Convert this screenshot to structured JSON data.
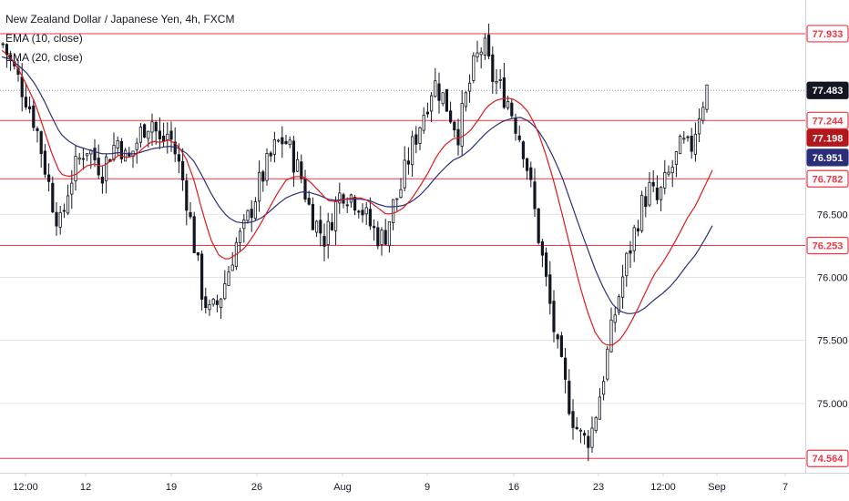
{
  "header": {
    "title": "New Zealand Dollar / Japanese Yen, 4h, FXCM",
    "indicators": [
      "EMA (10, close)",
      "EMA (20, close)"
    ]
  },
  "colors": {
    "up": "#131722",
    "down": "#131722",
    "ema10": "#e0191c",
    "ema20": "#2a2e7a",
    "level_line": "#f23645",
    "dotted": "#9598a1",
    "grid": "#e0e3eb",
    "axis_text": "#131722"
  },
  "chart_data": {
    "type": "candlestick",
    "title": "New Zealand Dollar / Japanese Yen, 4h, FXCM",
    "x_tick_labels": [
      "12:00",
      "12",
      "19",
      "26",
      "Aug",
      "9",
      "16",
      "23",
      "12:00",
      "Sep",
      "7"
    ],
    "y_tick_labels": [
      "76.500",
      "76.000",
      "75.500",
      "75.000"
    ],
    "ylim": [
      74.45,
      78.2
    ],
    "horizontal_levels": [
      77.933,
      77.244,
      76.782,
      76.253,
      74.564
    ],
    "price_badges": [
      {
        "value": "77.933",
        "style": "outline",
        "color": "#f23645"
      },
      {
        "value": "77.483",
        "style": "filled",
        "color": "#131722"
      },
      {
        "value": "77.244",
        "style": "outline",
        "color": "#f23645"
      },
      {
        "value": "77.198",
        "style": "filled",
        "color": "#b2171b"
      },
      {
        "value": "76.951",
        "style": "filled",
        "color": "#2a2e7a"
      },
      {
        "value": "76.782",
        "style": "outline",
        "color": "#f23645"
      },
      {
        "value": "76.253",
        "style": "outline",
        "color": "#f23645"
      },
      {
        "value": "74.564",
        "style": "outline",
        "color": "#f23645"
      }
    ],
    "last_price": 77.483,
    "close_path": [
      77.85,
      77.7,
      77.55,
      77.4,
      77.2,
      76.9,
      76.6,
      76.4,
      76.75,
      76.9,
      77.05,
      76.95,
      76.85,
      77.0,
      77.1,
      76.9,
      77.05,
      77.2,
      77.25,
      77.05,
      77.15,
      76.95,
      76.7,
      76.3,
      75.9,
      75.7,
      75.8,
      76.0,
      76.25,
      76.35,
      76.55,
      76.75,
      76.9,
      77.05,
      77.1,
      76.95,
      76.8,
      76.55,
      76.4,
      76.3,
      76.55,
      76.7,
      76.65,
      76.6,
      76.45,
      76.35,
      76.3,
      76.55,
      76.7,
      76.95,
      77.15,
      77.35,
      77.55,
      77.45,
      77.3,
      77.15,
      77.45,
      77.7,
      77.85,
      77.6,
      77.5,
      77.4,
      77.2,
      77.0,
      76.6,
      76.2,
      75.8,
      75.4,
      75.1,
      74.85,
      74.7,
      74.75,
      75.05,
      75.4,
      75.75,
      76.05,
      76.3,
      76.55,
      76.7,
      76.6,
      76.75,
      76.9,
      77.05,
      77.0,
      77.3,
      77.5
    ],
    "ema10_path": [
      77.8,
      77.75,
      77.65,
      77.52,
      77.38,
      77.18,
      76.98,
      76.82,
      76.8,
      76.82,
      76.88,
      76.9,
      76.88,
      76.92,
      76.97,
      76.95,
      76.97,
      77.03,
      77.08,
      77.07,
      77.09,
      77.05,
      76.95,
      76.77,
      76.52,
      76.3,
      76.17,
      76.14,
      76.18,
      76.23,
      76.32,
      76.43,
      76.55,
      76.67,
      76.77,
      76.8,
      76.8,
      76.75,
      76.68,
      76.61,
      76.6,
      76.62,
      76.63,
      76.63,
      76.6,
      76.55,
      76.5,
      76.51,
      76.55,
      76.62,
      76.72,
      76.83,
      76.96,
      77.05,
      77.1,
      77.11,
      77.16,
      77.25,
      77.35,
      77.4,
      77.42,
      77.42,
      77.38,
      77.31,
      77.18,
      76.99,
      76.77,
      76.51,
      76.24,
      75.97,
      75.74,
      75.56,
      75.47,
      75.46,
      75.51,
      75.61,
      75.74,
      75.88,
      76.02,
      76.11,
      76.22,
      76.34,
      76.47,
      76.57,
      76.71,
      76.85
    ],
    "ema20_path": [
      77.75,
      77.73,
      77.68,
      77.62,
      77.53,
      77.41,
      77.27,
      77.14,
      77.08,
      77.04,
      77.02,
      77.0,
      76.98,
      76.98,
      76.99,
      76.98,
      76.98,
      77.0,
      77.02,
      77.03,
      77.04,
      77.03,
      76.99,
      76.92,
      76.8,
      76.67,
      76.56,
      76.48,
      76.44,
      76.43,
      76.44,
      76.47,
      76.52,
      76.58,
      76.63,
      76.66,
      76.68,
      76.67,
      76.65,
      76.62,
      76.61,
      76.62,
      76.62,
      76.62,
      76.61,
      76.58,
      76.56,
      76.56,
      76.57,
      76.6,
      76.65,
      76.72,
      76.8,
      76.87,
      76.93,
      76.96,
      77.01,
      77.08,
      77.15,
      77.2,
      77.24,
      77.26,
      77.27,
      77.24,
      77.18,
      77.08,
      76.95,
      76.8,
      76.61,
      76.42,
      76.24,
      76.06,
      75.91,
      75.79,
      75.73,
      75.71,
      75.72,
      75.76,
      75.82,
      75.87,
      75.93,
      76.01,
      76.1,
      76.18,
      76.29,
      76.41
    ]
  }
}
